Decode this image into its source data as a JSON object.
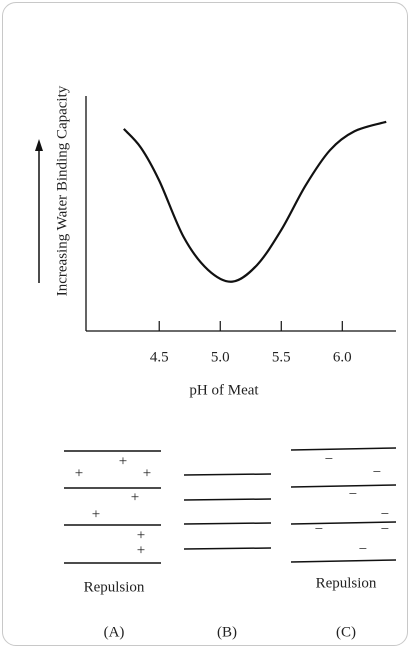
{
  "chart_data": {
    "type": "line",
    "y_label": "Increasing Water Binding Capacity",
    "x_label": "pH of Meat",
    "x": [
      4.21,
      4.35,
      4.5,
      4.7,
      4.9,
      5.1,
      5.3,
      5.5,
      5.7,
      5.9,
      6.1,
      6.36
    ],
    "series": [
      {
        "color": "#111111",
        "values": [
          8.6,
          7.8,
          6.4,
          4.0,
          2.6,
          2.1,
          2.8,
          4.3,
          6.2,
          7.7,
          8.5,
          8.9
        ]
      }
    ],
    "xlim": [
      3.9,
      6.44
    ],
    "ylim": [
      0,
      10
    ],
    "xticks": [
      4.5,
      {
        "value": 5,
        "label": "5.0"
      },
      5.5,
      {
        "value": 6,
        "label": "6.0"
      }
    ]
  },
  "diagram": {
    "panels": [
      {
        "sign": "+",
        "caption": "Repulsion",
        "label": "(A)"
      },
      {
        "label": "(B)"
      },
      {
        "sign": "−",
        "caption": "Repulsion",
        "label": "(C)"
      }
    ]
  }
}
